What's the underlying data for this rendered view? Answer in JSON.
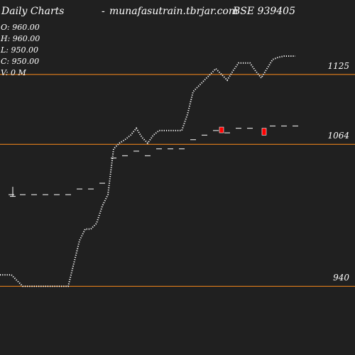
{
  "header": {
    "title": "Daily Charts",
    "dash": "-",
    "site": "munafasutrain.tbrjar.com",
    "code": "BSE 939405"
  },
  "ohlc": {
    "open": "O: 960.00",
    "high": "H: 960.00",
    "low": "L: 950.00",
    "close": "C: 950.00",
    "volume": "V: 0  M"
  },
  "colors": {
    "background": "#202020",
    "level_line": "#ff8c1a",
    "candle_down": "#ff0000",
    "tick": "#ffffff"
  },
  "chart_data": {
    "type": "line",
    "title": "",
    "xlabel": "",
    "ylabel": "",
    "ylim": [
      880,
      1190
    ],
    "horizontal_levels": [
      {
        "value": 1125,
        "label": "1125"
      },
      {
        "value": 1064,
        "label": "1064"
      },
      {
        "value": 940,
        "label": "940"
      }
    ],
    "line_series": {
      "x": [
        0,
        16,
        32,
        48,
        64,
        80,
        96,
        104,
        112,
        120,
        128,
        136,
        144,
        152,
        160,
        168,
        176,
        184,
        192,
        200,
        208,
        216,
        224,
        232,
        240,
        248,
        256,
        264,
        272,
        280,
        288,
        296,
        304,
        312,
        320,
        328,
        336,
        344,
        352,
        360,
        368,
        376,
        384,
        392,
        400,
        408,
        416
      ],
      "values": [
        950,
        950,
        940,
        940,
        940,
        940,
        940,
        960,
        980,
        990,
        990,
        995,
        1010,
        1020,
        1060,
        1065,
        1068,
        1072,
        1078,
        1070,
        1065,
        1072,
        1076,
        1076,
        1076,
        1076,
        1076,
        1090,
        1110,
        1115,
        1120,
        1125,
        1130,
        1125,
        1120,
        1128,
        1135,
        1135,
        1135,
        1128,
        1122,
        1130,
        1138,
        1140,
        1141,
        1141,
        1141
      ]
    },
    "ticks": {
      "x": [
        16,
        32,
        48,
        64,
        80,
        96,
        112,
        128,
        144,
        160,
        176,
        192,
        208,
        224,
        240,
        256,
        272,
        288,
        304,
        320,
        336,
        352,
        384,
        400,
        416
      ],
      "values": [
        1020,
        1020,
        1020,
        1020,
        1020,
        1020,
        1025,
        1025,
        1030,
        1052,
        1054,
        1058,
        1054,
        1060,
        1060,
        1060,
        1068,
        1072,
        1076,
        1074,
        1078,
        1078,
        1080,
        1080,
        1080
      ]
    },
    "small_candles": [
      {
        "x": 312,
        "open": 1079,
        "close": 1075,
        "high": 1080,
        "low": 1075
      },
      {
        "x": 18,
        "open": 1025,
        "close": 1021,
        "high": 1025,
        "low": 1021
      },
      {
        "x": 372,
        "open": 1078,
        "close": 1072,
        "high": 1078,
        "low": 1072
      }
    ],
    "down_candles": [
      0,
      2
    ]
  }
}
